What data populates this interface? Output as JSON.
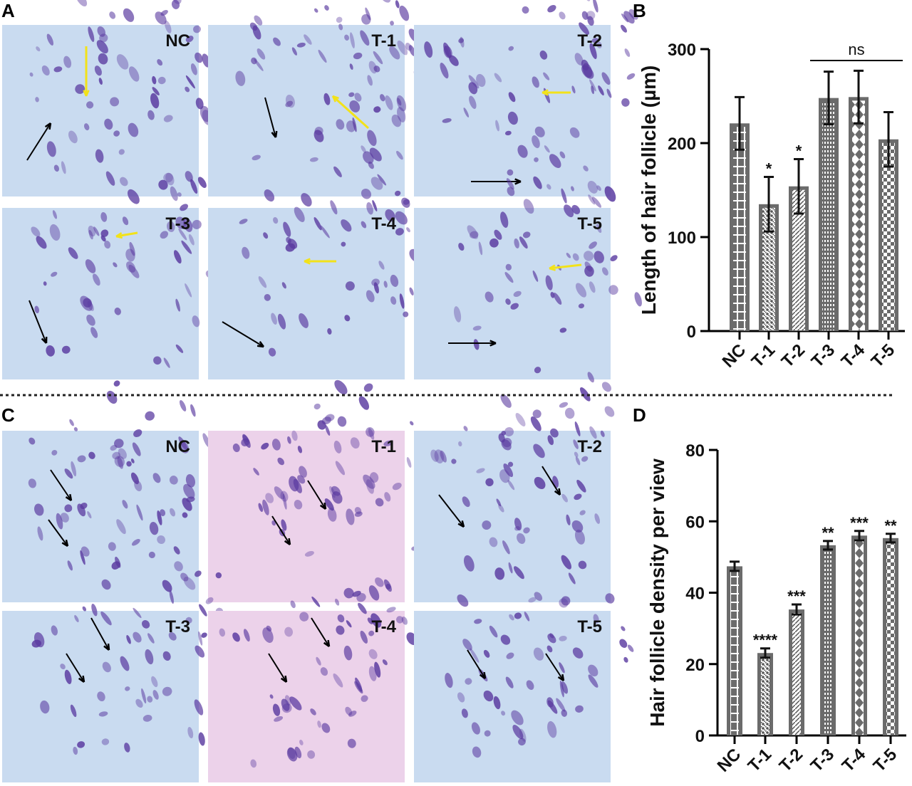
{
  "panels": {
    "A": {
      "label": "A",
      "images": [
        "NC",
        "T-1",
        "T-2",
        "T-3",
        "T-4",
        "T-5"
      ]
    },
    "B": {
      "label": "B"
    },
    "C": {
      "label": "C",
      "images": [
        "NC",
        "T-1",
        "T-2",
        "T-3",
        "T-4",
        "T-5"
      ]
    },
    "D": {
      "label": "D"
    }
  },
  "colors": {
    "bar": "#6b6b6b",
    "photo_blue": "#c9dbf0",
    "photo_pink": "#ecd2ea",
    "stain": "#5a3aa0",
    "arrow_yellow": "#f2e21a"
  },
  "chart_data": [
    {
      "type": "bar",
      "panel": "B",
      "categories": [
        "NC",
        "T-1",
        "T-2",
        "T-3",
        "T-4",
        "T-5"
      ],
      "values": [
        221,
        135,
        154,
        248,
        249,
        204
      ],
      "error": [
        28,
        29,
        29,
        28,
        28,
        29
      ],
      "significance": [
        "",
        "*",
        "*",
        "",
        "",
        ""
      ],
      "bracket": {
        "from": "T-3",
        "to": "T-5",
        "label": "ns"
      },
      "ylabel": "Length of hair follicle (µm)",
      "yticks": [
        0,
        100,
        200,
        300
      ],
      "ylim": [
        0,
        300
      ],
      "grid": false
    },
    {
      "type": "bar",
      "panel": "D",
      "categories": [
        "NC",
        "T-1",
        "T-2",
        "T-3",
        "T-4",
        "T-5"
      ],
      "values": [
        47.4,
        23.1,
        35.3,
        53.3,
        56.0,
        55.3
      ],
      "error": [
        1.3,
        1.3,
        1.4,
        1.2,
        1.3,
        1.2
      ],
      "significance": [
        "",
        "****",
        "***",
        "**",
        "***",
        "**"
      ],
      "ylabel": "Hair follicle density per view",
      "yticks": [
        0,
        20,
        40,
        60,
        80
      ],
      "ylim": [
        0,
        80
      ],
      "grid": false
    }
  ]
}
